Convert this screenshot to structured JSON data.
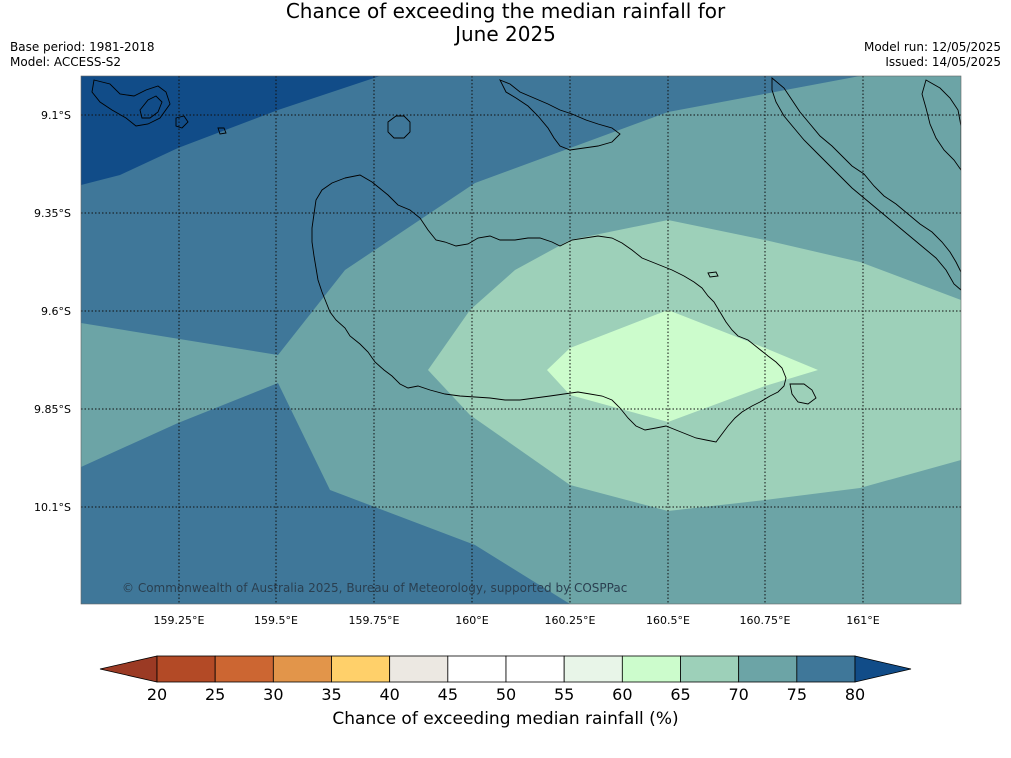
{
  "title": {
    "line1": "Chance of exceeding the median rainfall for",
    "line2": "June 2025"
  },
  "meta": {
    "base_period": "Base period: 1981-2018",
    "model": "Model: ACCESS-S2",
    "model_run": "Model run: 12/05/2025",
    "issued": "Issued: 14/05/2025"
  },
  "map": {
    "lat_ticks": [
      "9.1°S",
      "9.35°S",
      "9.6°S",
      "9.85°S",
      "10.1°S"
    ],
    "lon_ticks": [
      "159.25°E",
      "159.5°E",
      "159.75°E",
      "160°E",
      "160.25°E",
      "160.5°E",
      "160.75°E",
      "161°E"
    ],
    "credit": "© Commonwealth of Australia 2025, Bureau of Meteorology, supported by COSPPac",
    "gridlines": "dotted"
  },
  "colorbar": {
    "title": "Chance of exceeding median rainfall (%)",
    "ticks": [
      "20",
      "25",
      "30",
      "35",
      "40",
      "45",
      "50",
      "55",
      "60",
      "65",
      "70",
      "75",
      "80"
    ],
    "colors": [
      "#9b3a24",
      "#b34a26",
      "#cc6632",
      "#e2954a",
      "#ffd06a",
      "#ece8e2",
      "#ffffff",
      "#ffffff",
      "#e8f5e8",
      "#ccfccc",
      "#9dd0b9",
      "#6ca4a6",
      "#3f7799",
      "#114c88"
    ]
  },
  "levels": {
    "c80": "#114c88",
    "c75": "#3f7799",
    "c70": "#6ca4a6",
    "c65": "#9dd0b9",
    "c60": "#ccfccc"
  }
}
